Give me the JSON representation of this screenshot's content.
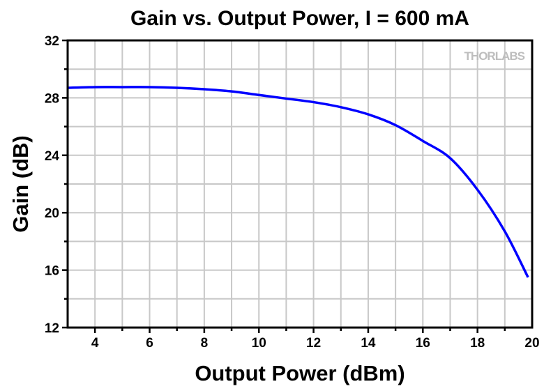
{
  "chart_data": {
    "type": "line",
    "title": "Gain vs. Output Power, I = 600 mA",
    "xlabel": "Output Power (dBm)",
    "ylabel": "Gain (dB)",
    "xlim": [
      3,
      20
    ],
    "ylim": [
      12,
      32
    ],
    "xticks": [
      4,
      6,
      8,
      10,
      12,
      14,
      16,
      18,
      20
    ],
    "yticks": [
      12,
      16,
      20,
      24,
      28,
      32
    ],
    "grid": true,
    "watermark": "THORLABS",
    "series": [
      {
        "name": "Gain",
        "color": "#0000ff",
        "x": [
          3,
          4,
          5,
          6,
          7,
          8,
          9,
          10,
          11,
          12,
          13,
          14,
          15,
          16,
          17,
          18,
          19,
          19.85
        ],
        "y": [
          28.7,
          28.75,
          28.75,
          28.75,
          28.7,
          28.6,
          28.45,
          28.2,
          27.95,
          27.7,
          27.35,
          26.85,
          26.1,
          25.0,
          23.8,
          21.6,
          18.7,
          15.5
        ]
      }
    ]
  }
}
